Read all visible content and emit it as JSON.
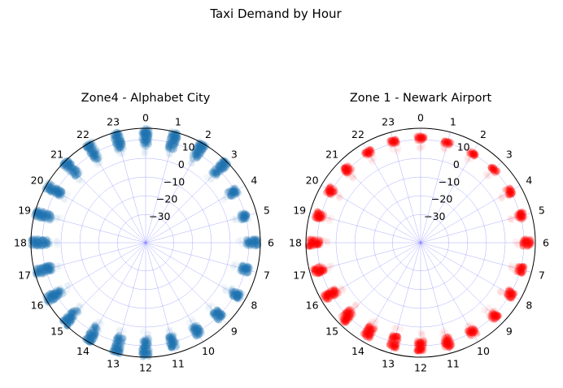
{
  "figure": {
    "title": "Taxi Demand by Hour"
  },
  "chart_data": [
    {
      "type": "scatter",
      "projection": "polar",
      "title": "Zone4 - Alphabet City",
      "theta_labels": [
        "0",
        "1",
        "2",
        "3",
        "4",
        "5",
        "6",
        "7",
        "8",
        "9",
        "10",
        "11",
        "12",
        "13",
        "14",
        "15",
        "16",
        "17",
        "18",
        "19",
        "20",
        "21",
        "22",
        "23"
      ],
      "theta_direction": "clockwise, 0 at top",
      "r_ticks": [
        "10",
        "0",
        "−10",
        "−20",
        "−30"
      ],
      "r_tick_values": [
        10,
        0,
        -10,
        -20,
        -30
      ],
      "rlim": [
        -45,
        16
      ],
      "grid": true,
      "marker_color": "#1f77b4",
      "hours": [
        0,
        1,
        2,
        3,
        4,
        5,
        6,
        7,
        8,
        9,
        10,
        11,
        12,
        13,
        14,
        15,
        16,
        17,
        18,
        19,
        20,
        21,
        22,
        23
      ],
      "r_range_by_hour": [
        [
          6,
          16
        ],
        [
          6,
          16
        ],
        [
          6,
          16
        ],
        [
          6,
          16
        ],
        [
          6,
          11
        ],
        [
          7,
          11
        ],
        [
          8,
          15
        ],
        [
          7,
          12
        ],
        [
          7,
          13
        ],
        [
          6,
          12
        ],
        [
          6,
          12
        ],
        [
          6,
          13
        ],
        [
          6,
          16
        ],
        [
          6,
          16
        ],
        [
          6,
          16
        ],
        [
          6,
          16
        ],
        [
          6,
          16
        ],
        [
          6,
          16
        ],
        [
          6,
          16
        ],
        [
          6,
          16
        ],
        [
          6,
          16
        ],
        [
          6,
          16
        ],
        [
          6,
          16
        ],
        [
          6,
          16
        ]
      ]
    },
    {
      "type": "scatter",
      "projection": "polar",
      "title": "Zone 1 - Newark Airport",
      "theta_labels": [
        "0",
        "1",
        "2",
        "3",
        "4",
        "5",
        "6",
        "7",
        "8",
        "9",
        "10",
        "11",
        "12",
        "13",
        "14",
        "15",
        "16",
        "17",
        "18",
        "19",
        "20",
        "21",
        "22",
        "23"
      ],
      "theta_direction": "clockwise, 0 at top",
      "r_ticks": [
        "10",
        "0",
        "−10",
        "−20",
        "−30"
      ],
      "r_tick_values": [
        10,
        0,
        -10,
        -20,
        -30
      ],
      "rlim": [
        -45,
        16
      ],
      "grid": true,
      "marker_color": "#ff0000",
      "hours": [
        0,
        1,
        2,
        3,
        4,
        5,
        6,
        7,
        8,
        9,
        10,
        11,
        12,
        13,
        14,
        15,
        16,
        17,
        18,
        19,
        20,
        21,
        22,
        23
      ],
      "r_range_by_hour": [
        [
          9,
          12
        ],
        [
          9,
          11
        ],
        [
          9,
          11
        ],
        [
          9,
          11
        ],
        [
          8,
          11
        ],
        [
          8,
          12
        ],
        [
          9,
          14
        ],
        [
          8,
          12
        ],
        [
          8,
          12
        ],
        [
          8,
          12
        ],
        [
          8,
          12
        ],
        [
          7,
          13
        ],
        [
          6,
          13
        ],
        [
          6,
          13
        ],
        [
          6,
          13
        ],
        [
          6,
          14
        ],
        [
          6,
          14
        ],
        [
          8,
          14
        ],
        [
          8,
          15
        ],
        [
          8,
          13
        ],
        [
          8,
          12
        ],
        [
          8,
          12
        ],
        [
          9,
          12
        ],
        [
          9,
          12
        ]
      ]
    }
  ]
}
